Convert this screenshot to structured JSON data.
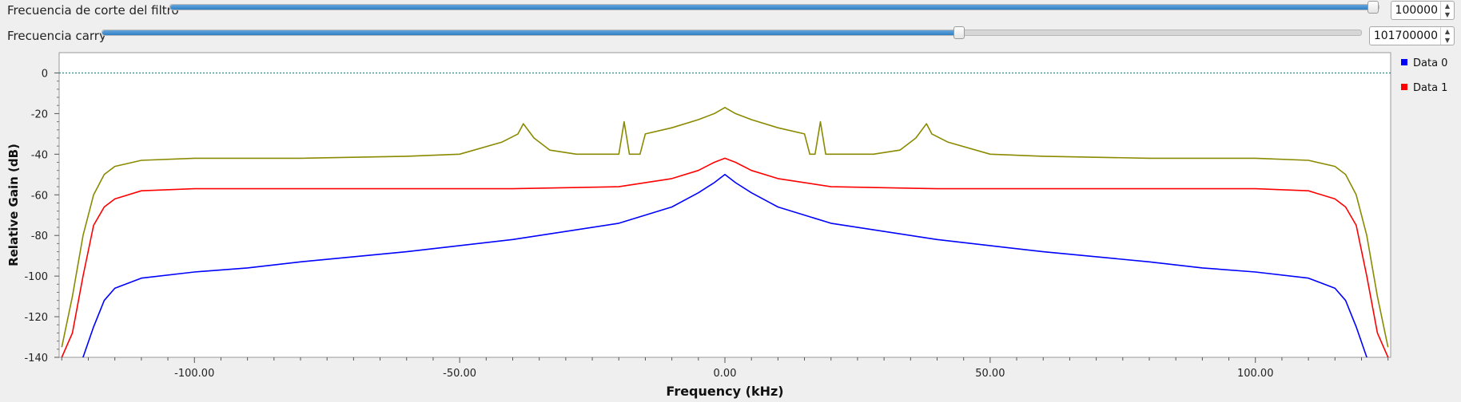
{
  "controls": {
    "cutoff": {
      "label": "Frecuencia de corte del filtro",
      "value": "100000",
      "level": 0.995
    },
    "carry": {
      "label": "Frecuencia carry",
      "value": "101700000",
      "level": 0.68
    }
  },
  "icons": {
    "spin_up": "spin-up-arrow-icon",
    "spin_down": "spin-down-arrow-icon"
  },
  "chart_data": {
    "type": "line",
    "xlabel": "Frequency (kHz)",
    "ylabel": "Relative Gain (dB)",
    "xlim": [
      -125.5,
      125.5
    ],
    "ylim": [
      -140,
      10
    ],
    "xticks": [
      -100,
      -50,
      0,
      50,
      100
    ],
    "xtick_labels": [
      "-100.00",
      "-50.00",
      "0.00",
      "50.00",
      "100.00"
    ],
    "yticks": [
      0,
      -20,
      -40,
      -60,
      -80,
      -100,
      -120,
      -140
    ],
    "ytick_labels": [
      "0",
      "-20",
      "-40",
      "-60",
      "-80",
      "-100",
      "-120",
      "-140"
    ],
    "reference_line": {
      "y": 0,
      "color": "#2a8a8a",
      "style": "dotted"
    },
    "legend_position": "right",
    "grid": false,
    "legend": [
      {
        "name": "Data 0",
        "color": "#0000ff"
      },
      {
        "name": "Data 1",
        "color": "#ff0000"
      }
    ],
    "series": [
      {
        "color": "#8a8a00",
        "x": [
          -125,
          -123,
          -121,
          -119,
          -117,
          -115,
          -110,
          -100,
          -80,
          -60,
          -50,
          -42,
          -39,
          -38,
          -36,
          -33,
          -28,
          -20,
          -19,
          -18,
          -17,
          -16,
          -15,
          -10,
          -5,
          -2,
          0,
          2,
          5,
          10,
          15,
          16,
          17,
          18,
          19,
          20,
          28,
          33,
          36,
          38,
          39,
          42,
          50,
          60,
          80,
          100,
          110,
          115,
          117,
          119,
          121,
          123,
          125
        ],
        "y": [
          -135,
          -110,
          -80,
          -60,
          -50,
          -46,
          -43,
          -42,
          -42,
          -41,
          -40,
          -34,
          -30,
          -25,
          -32,
          -38,
          -40,
          -40,
          -24,
          -40,
          -40,
          -40,
          -30,
          -27,
          -23,
          -20,
          -17,
          -20,
          -23,
          -27,
          -30,
          -40,
          -40,
          -24,
          -40,
          -40,
          -40,
          -38,
          -32,
          -25,
          -30,
          -34,
          -40,
          -41,
          -42,
          -42,
          -43,
          -46,
          -50,
          -60,
          -80,
          -110,
          -135
        ]
      },
      {
        "name": "Data 1",
        "color": "#ff0000",
        "x": [
          -125,
          -123,
          -121,
          -119,
          -117,
          -115,
          -110,
          -100,
          -80,
          -60,
          -40,
          -20,
          -10,
          -5,
          -2,
          0,
          2,
          5,
          10,
          20,
          40,
          60,
          80,
          100,
          110,
          115,
          117,
          119,
          121,
          123,
          125
        ],
        "y": [
          -140,
          -128,
          -100,
          -75,
          -66,
          -62,
          -58,
          -57,
          -57,
          -57,
          -57,
          -56,
          -52,
          -48,
          -44,
          -42,
          -44,
          -48,
          -52,
          -56,
          -57,
          -57,
          -57,
          -57,
          -58,
          -62,
          -66,
          -75,
          -100,
          -128,
          -140
        ]
      },
      {
        "name": "Data 0",
        "color": "#0000ff",
        "x": [
          -125,
          -123,
          -121,
          -119,
          -117,
          -115,
          -110,
          -100,
          -90,
          -80,
          -60,
          -40,
          -20,
          -10,
          -5,
          -2,
          0,
          2,
          5,
          10,
          20,
          40,
          60,
          80,
          90,
          100,
          110,
          115,
          117,
          119,
          121,
          123,
          125
        ],
        "y": [
          -150,
          -145,
          -140,
          -125,
          -112,
          -106,
          -101,
          -98,
          -96,
          -93,
          -88,
          -82,
          -74,
          -66,
          -59,
          -54,
          -50,
          -54,
          -59,
          -66,
          -74,
          -82,
          -88,
          -93,
          -96,
          -98,
          -101,
          -106,
          -112,
          -125,
          -140,
          -145,
          -150
        ]
      }
    ]
  }
}
